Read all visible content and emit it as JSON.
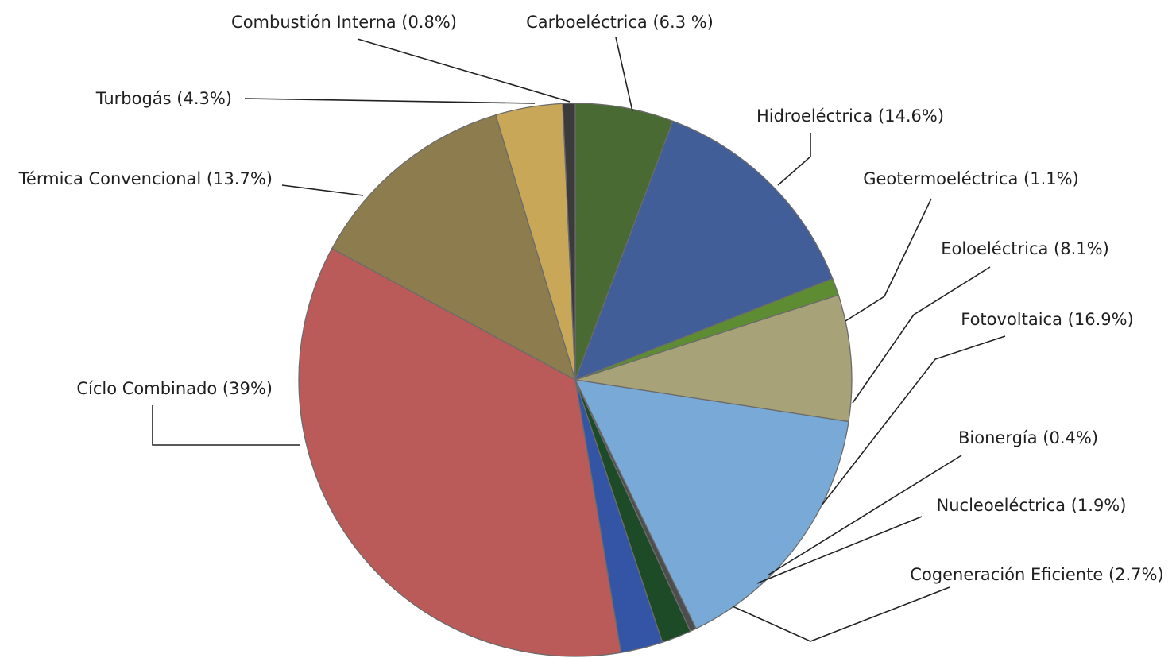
{
  "chart_data": {
    "type": "pie",
    "title": "",
    "slices": [
      {
        "name": "Carboeléctrica",
        "value": 6.3,
        "label": "Carboeléctrica (6.3 %)",
        "color": "#4a6a33"
      },
      {
        "name": "Hidroeléctrica",
        "value": 14.6,
        "label": "Hidroeléctrica (14.6%)",
        "color": "#425e99"
      },
      {
        "name": "Geotermoeléctrica",
        "value": 1.1,
        "label": "Geotermoeléctrica (1.1%)",
        "color": "#5e8c32"
      },
      {
        "name": "Eoloeléctrica",
        "value": 8.1,
        "label": "Eoloeléctrica (8.1%)",
        "color": "#a7a277"
      },
      {
        "name": "Fotovoltaica",
        "value": 16.9,
        "label": "Fotovoltaica (16.9%)",
        "color": "#78a9d7"
      },
      {
        "name": "Bionergía",
        "value": 0.4,
        "label": "Bionergía (0.4%)",
        "color": "#4d4d4d"
      },
      {
        "name": "Nucleoeléctrica",
        "value": 1.9,
        "label": "Nucleoeléctrica (1.9%)",
        "color": "#1e4b27"
      },
      {
        "name": "Cogeneración Eficiente",
        "value": 2.7,
        "label": "Cogeneración Eficiente (2.7%)",
        "color": "#3455a6"
      },
      {
        "name": "Cíclo Combinado",
        "value": 39,
        "label": "Cíclo Combinado (39%)",
        "color": "#bb5b59"
      },
      {
        "name": "Térmica Convencional",
        "value": 13.7,
        "label": "Térmica Convencional (13.7%)",
        "color": "#8d7d4e"
      },
      {
        "name": "Turbogás",
        "value": 4.3,
        "label": "Turbogás (4.3%)",
        "color": "#c8a858"
      },
      {
        "name": "Combustión Interna",
        "value": 0.8,
        "label": "Combustión Interna (0.8%)",
        "color": "#3b3b3b"
      }
    ]
  }
}
